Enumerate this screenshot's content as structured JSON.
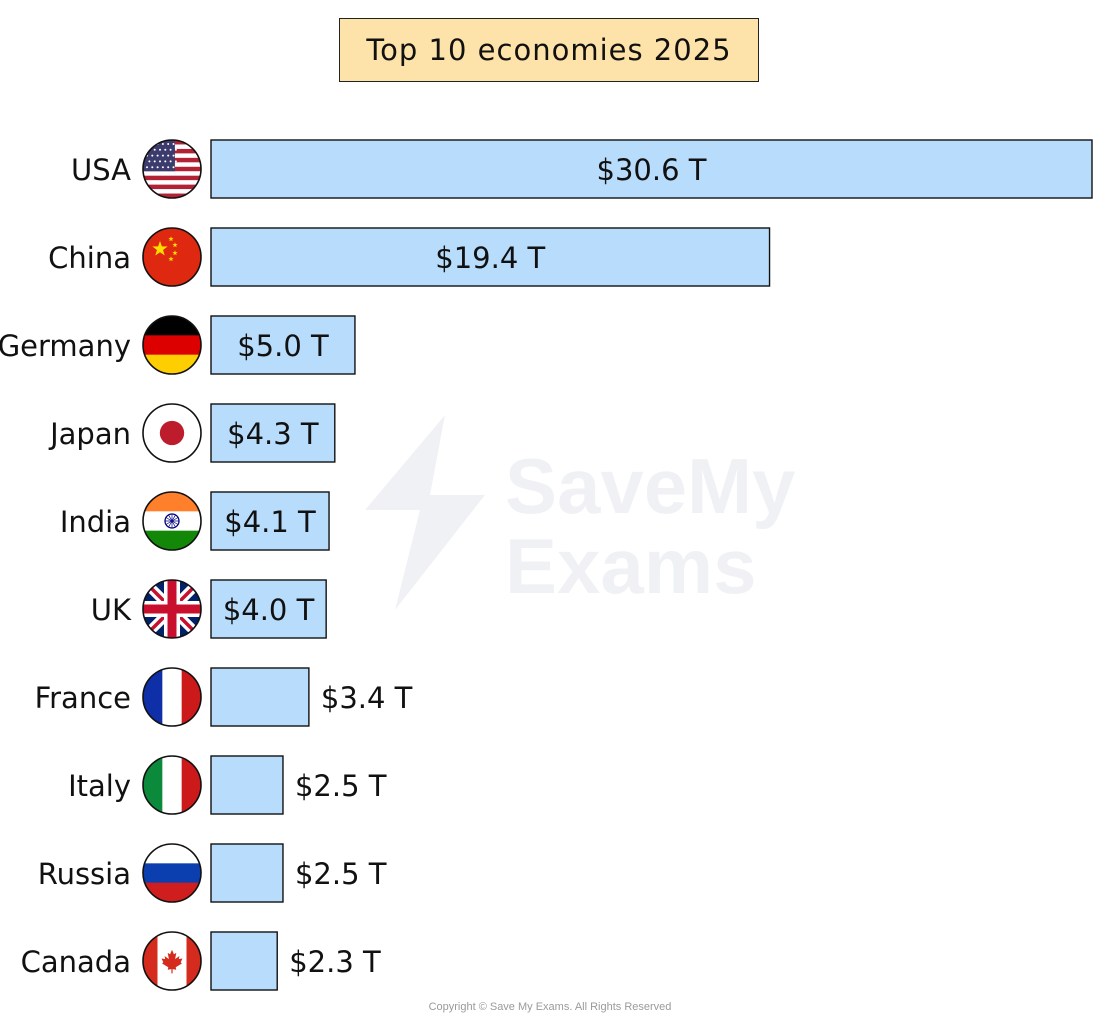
{
  "watermark": "SaveMy\nExams",
  "copyright": "Copyright © Save My Exams. All Rights Reserved",
  "chart_data": {
    "type": "bar",
    "orientation": "horizontal",
    "title": "Top 10 economies 2025",
    "categories": [
      "USA",
      "China",
      "Germany",
      "Japan",
      "India",
      "UK",
      "France",
      "Italy",
      "Russia",
      "Canada"
    ],
    "values": [
      30.6,
      19.4,
      5.0,
      4.3,
      4.1,
      4.0,
      3.4,
      2.5,
      2.5,
      2.3
    ],
    "labels": [
      "$30.6 T",
      "$19.4 T",
      "$5.0 T",
      "$4.3 T",
      "$4.1 T",
      "$4.0 T",
      "$3.4 T",
      "$2.5 T",
      "$2.5 T",
      "$2.3 T"
    ],
    "flag_icons": [
      "usa-flag-icon",
      "china-flag-icon",
      "germany-flag-icon",
      "japan-flag-icon",
      "india-flag-icon",
      "uk-flag-icon",
      "france-flag-icon",
      "italy-flag-icon",
      "russia-flag-icon",
      "canada-flag-icon"
    ],
    "xlim": [
      0,
      30.6
    ],
    "xlabel": "",
    "ylabel": "",
    "grid": false,
    "legend": "none",
    "bar_color": "#b8dcfc",
    "title_bg": "#fde3a9"
  }
}
